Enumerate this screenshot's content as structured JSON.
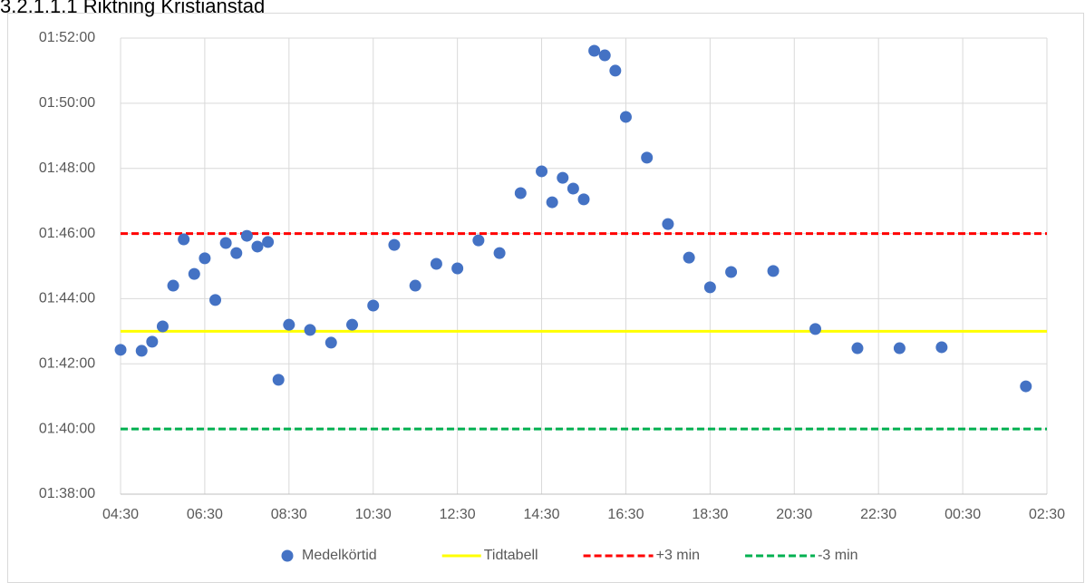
{
  "chart_data": {
    "type": "scatter",
    "title": "3.2.1.1.1 Riktning Kristianstad",
    "series": [
      {
        "name": "Medelkörtid",
        "color": "#4472c4",
        "x": [
          4.5,
          5.0,
          5.25,
          5.5,
          5.75,
          6.0,
          6.25,
          6.5,
          6.75,
          7.0,
          7.25,
          7.5,
          7.75,
          8.0,
          8.25,
          8.5,
          9.0,
          9.5,
          10.0,
          10.5,
          11.0,
          11.5,
          12.0,
          12.5,
          13.0,
          13.5,
          14.0,
          14.5,
          14.75,
          15.0,
          15.25,
          15.5,
          15.75,
          16.0,
          16.25,
          16.5,
          17.0,
          17.5,
          18.0,
          18.5,
          19.0,
          20.0,
          21.0,
          22.0,
          23.0,
          24.0,
          26.0
        ],
        "values": [
          102.43,
          102.4,
          102.68,
          103.15,
          104.4,
          105.82,
          104.76,
          105.24,
          103.96,
          105.71,
          105.4,
          105.93,
          105.6,
          105.74,
          101.51,
          103.2,
          103.04,
          102.65,
          103.2,
          103.79,
          105.65,
          104.4,
          105.07,
          104.93,
          105.79,
          105.4,
          107.24,
          107.91,
          106.96,
          107.71,
          107.38,
          107.05,
          111.61,
          111.47,
          111.0,
          109.58,
          108.33,
          106.29,
          105.26,
          104.35,
          104.82,
          104.85,
          103.07,
          102.48,
          102.48,
          102.51,
          101.31
        ]
      }
    ],
    "reference_lines": [
      {
        "name": "Tidtabell",
        "color": "#ffff00",
        "value": 103,
        "dashed": false
      },
      {
        "name": "+3 min",
        "color": "#ff0000",
        "value": 106,
        "dashed": true
      },
      {
        "name": "-3 min",
        "color": "#00b050",
        "value": 100,
        "dashed": true
      }
    ],
    "xlim": [
      4.5,
      26.5
    ],
    "xticks": [
      {
        "value": 4.5,
        "label": "04:30"
      },
      {
        "value": 6.5,
        "label": "06:30"
      },
      {
        "value": 8.5,
        "label": "08:30"
      },
      {
        "value": 10.5,
        "label": "10:30"
      },
      {
        "value": 12.5,
        "label": "12:30"
      },
      {
        "value": 14.5,
        "label": "14:30"
      },
      {
        "value": 16.5,
        "label": "16:30"
      },
      {
        "value": 18.5,
        "label": "18:30"
      },
      {
        "value": 20.5,
        "label": "20:30"
      },
      {
        "value": 22.5,
        "label": "22:30"
      },
      {
        "value": 24.5,
        "label": "00:30"
      },
      {
        "value": 26.5,
        "label": "02:30"
      }
    ],
    "ylim": [
      98,
      112
    ],
    "yticks": [
      {
        "value": 98,
        "label": "01:38:00"
      },
      {
        "value": 100,
        "label": "01:40:00"
      },
      {
        "value": 102,
        "label": "01:42:00"
      },
      {
        "value": 104,
        "label": "01:44:00"
      },
      {
        "value": 106,
        "label": "01:46:00"
      },
      {
        "value": 108,
        "label": "01:48:00"
      },
      {
        "value": 110,
        "label": "01:50:00"
      },
      {
        "value": 112,
        "label": "01:52:00"
      }
    ],
    "grid": true,
    "legend": "bottom"
  }
}
